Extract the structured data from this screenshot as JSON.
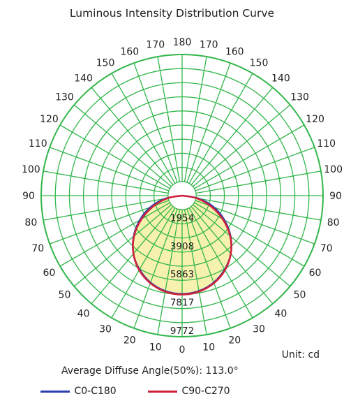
{
  "chart_data": {
    "type": "polar",
    "title": "Luminous Intensity Distribution Curve",
    "angle_labels_left": [
      "0",
      "10",
      "20",
      "30",
      "40",
      "50",
      "60",
      "70",
      "80",
      "90",
      "100",
      "110",
      "120",
      "130",
      "140",
      "150",
      "160",
      "170",
      "180"
    ],
    "angle_labels_right": [
      "10",
      "20",
      "30",
      "40",
      "50",
      "60",
      "70",
      "80",
      "90",
      "100",
      "110",
      "120",
      "130",
      "140",
      "150",
      "160",
      "170"
    ],
    "radial_labels": [
      "1954",
      "3908",
      "5863",
      "7817",
      "9772"
    ],
    "radial_max": 9772,
    "unit": "Unit: cd",
    "average_diffuse_angle": "Average Diffuse Angle(50%): 113.0°",
    "series": [
      {
        "name": "C0-C180",
        "color": "#2b3fb0",
        "angles": [
          0,
          10,
          20,
          30,
          40,
          50,
          60,
          70,
          80,
          90
        ],
        "values": [
          6800,
          6700,
          6400,
          5900,
          5250,
          4400,
          3400,
          2350,
          1200,
          0
        ]
      },
      {
        "name": "C90-C270",
        "color": "#d0223b",
        "angles": [
          0,
          10,
          20,
          30,
          40,
          50,
          60,
          70,
          80,
          90
        ],
        "values": [
          6850,
          6750,
          6450,
          5950,
          5250,
          4350,
          3250,
          2100,
          1000,
          0
        ]
      }
    ],
    "grid_color": "#31b64a",
    "fill_color": "#f6f0a5"
  }
}
